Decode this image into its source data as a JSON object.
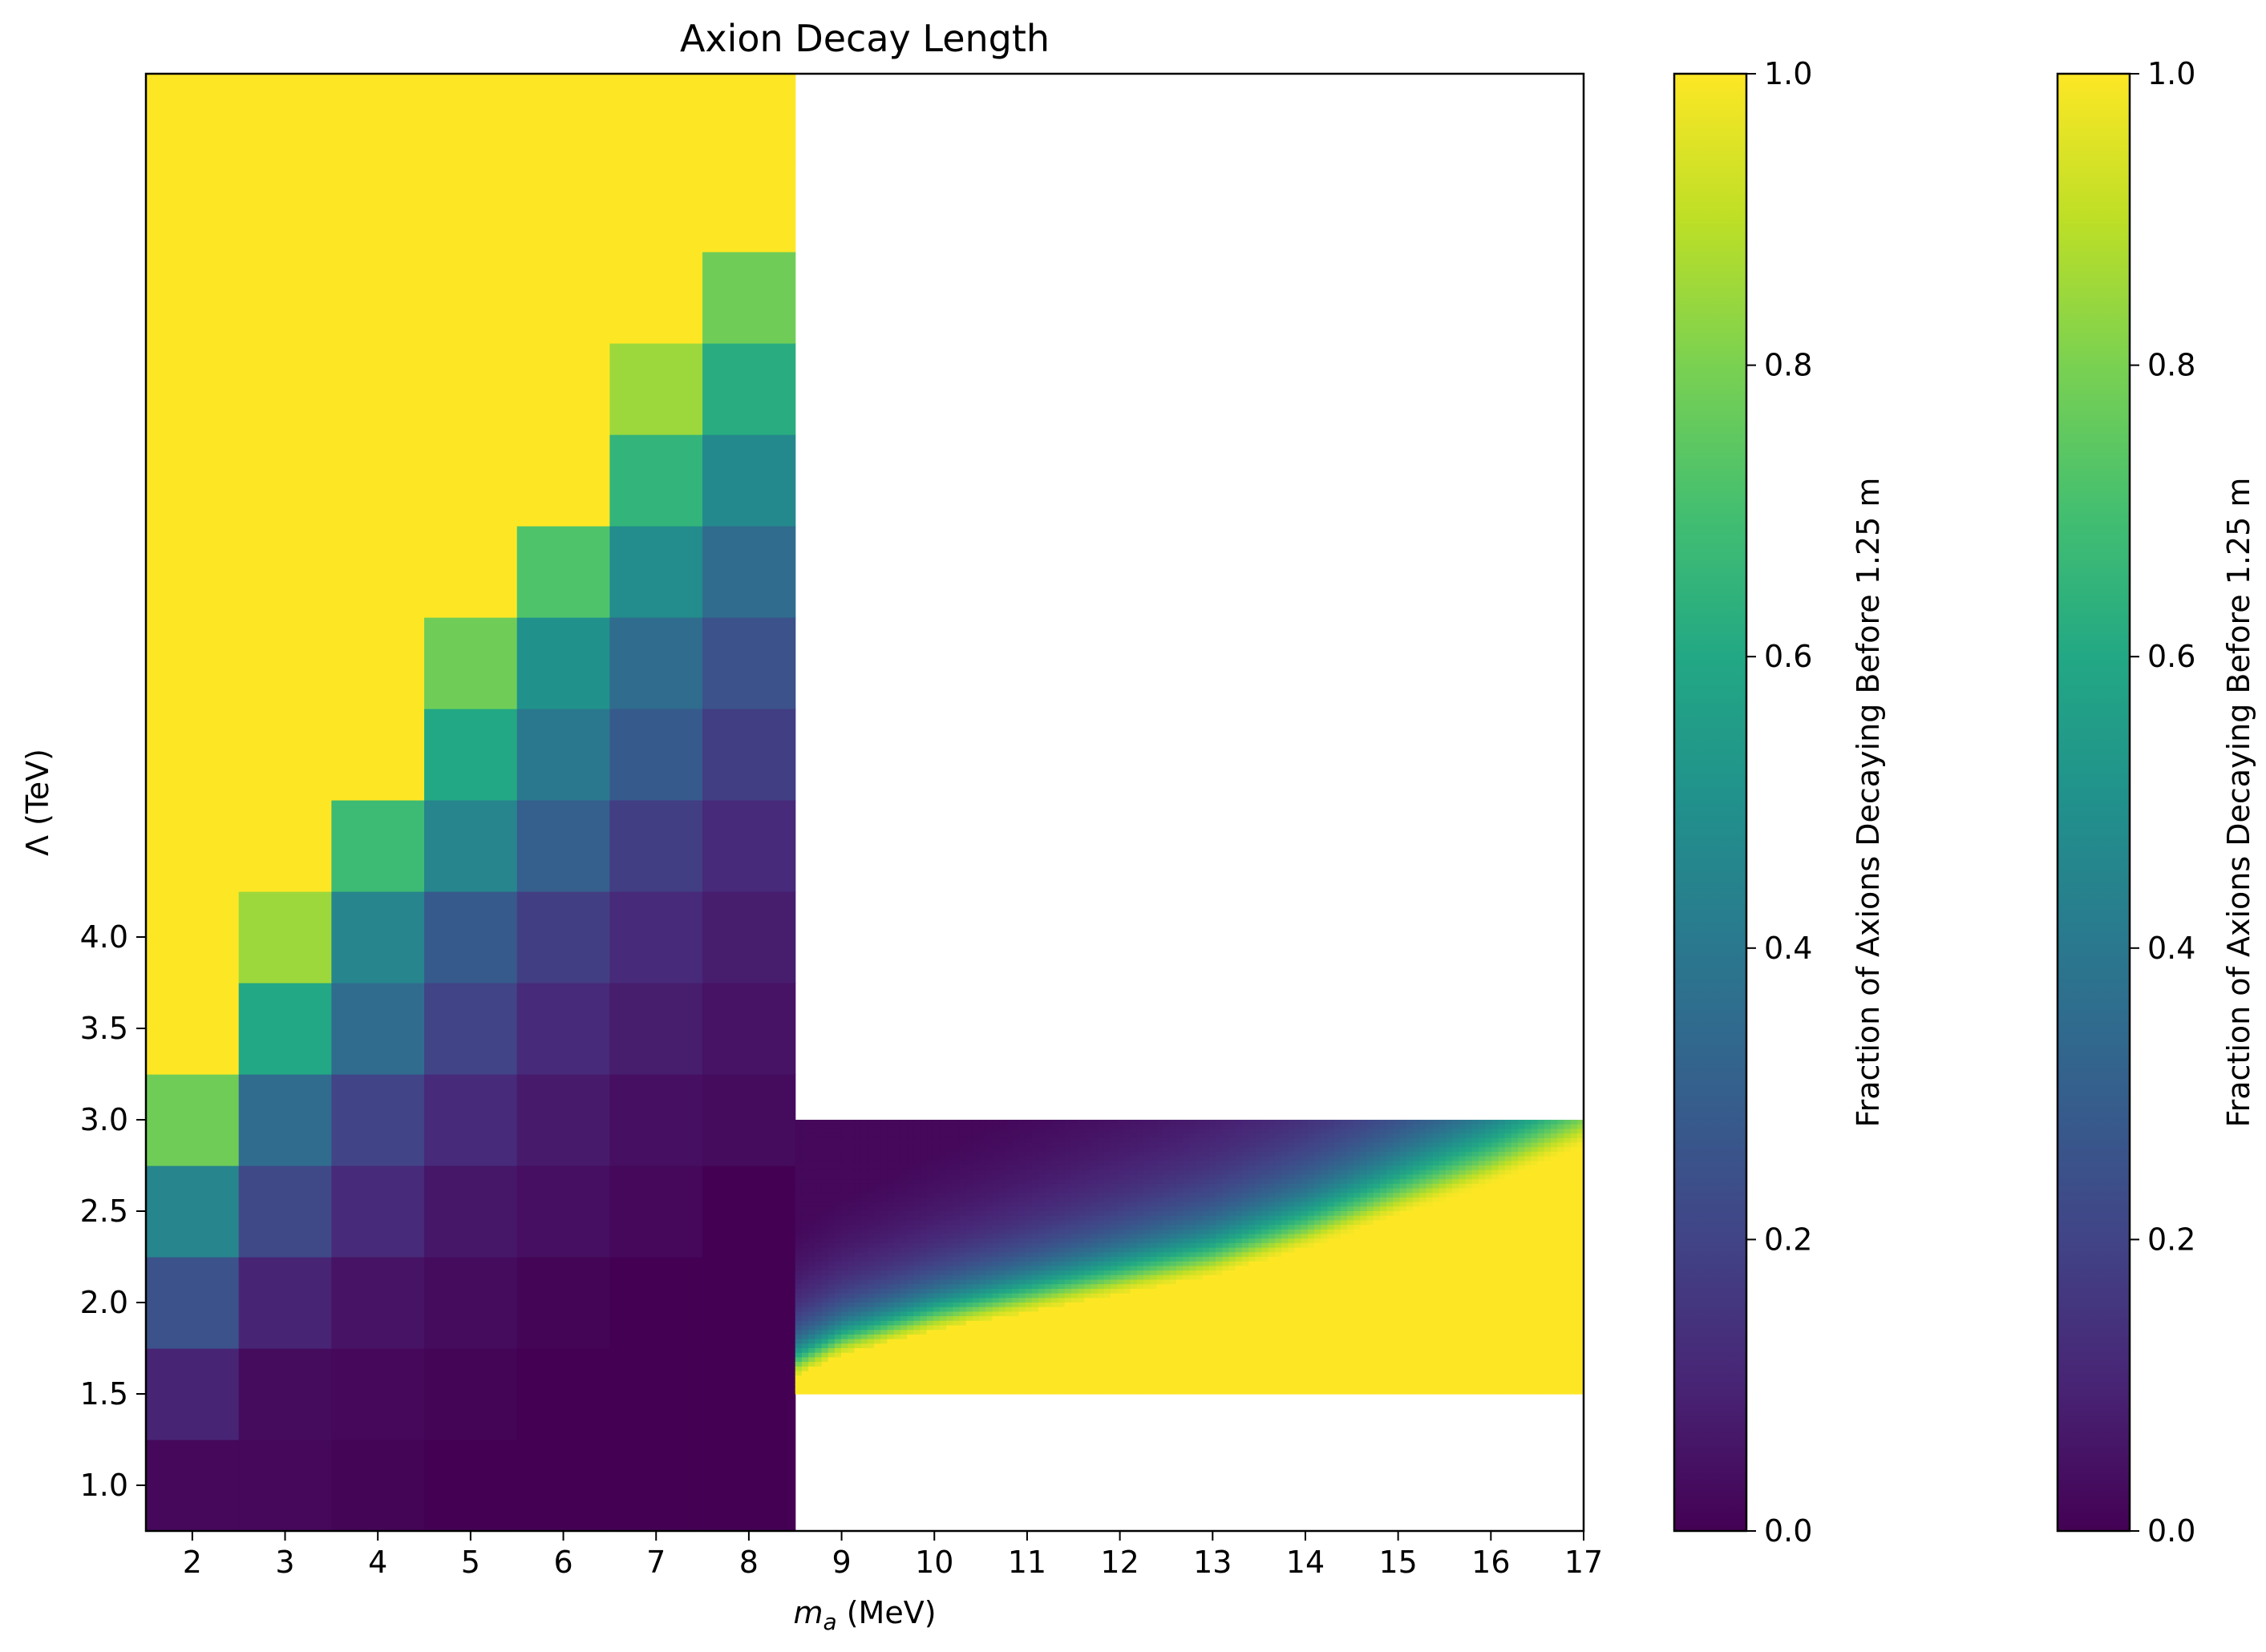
{
  "chart_data": {
    "type": "heatmap",
    "title": "Axion Decay Length",
    "xlabel": "m",
    "xlabel_sub": "a",
    "xlabel_unit": " (MeV)",
    "ylabel": "Λ (TeV)",
    "x_ticks": [
      "2",
      "3",
      "4",
      "5",
      "6",
      "7",
      "8",
      "9",
      "10",
      "11",
      "12",
      "13",
      "14",
      "15",
      "16",
      "17"
    ],
    "y_ticks": [
      "1.0",
      "1.5",
      "2.0",
      "2.5",
      "3.0",
      "3.5",
      "4.0"
    ],
    "colormap": "viridis",
    "colorbars": [
      {
        "label": "Fraction of Axions Decaying Before 1.25 m",
        "ticks": [
          "0.0",
          "0.2",
          "0.4",
          "0.6",
          "0.8",
          "1.0"
        ],
        "range": [
          0,
          1
        ]
      },
      {
        "label": "Fraction of Axions Decaying Before 1.25 m",
        "ticks": [
          "0.0",
          "0.2",
          "0.4",
          "0.6",
          "0.8",
          "1.0"
        ],
        "range": [
          0,
          1
        ]
      }
    ],
    "grid": false,
    "left_grid": {
      "x": [
        2,
        3,
        4,
        5,
        6,
        7,
        8
      ],
      "y_rows": [
        1.0,
        1.5,
        2.0,
        2.5,
        3.0,
        3.5,
        4.0,
        4.5,
        5.0,
        5.5,
        6.0,
        6.5,
        7.0,
        7.5,
        8.0,
        8.5
      ],
      "values": [
        [
          0.02,
          0.02,
          0.01,
          0.0,
          0.0,
          0.0,
          0.0
        ],
        [
          0.1,
          0.03,
          0.02,
          0.01,
          0.0,
          0.0,
          0.0
        ],
        [
          0.25,
          0.1,
          0.05,
          0.03,
          0.01,
          0.0,
          0.0
        ],
        [
          0.45,
          0.22,
          0.12,
          0.06,
          0.04,
          0.02,
          0.0
        ],
        [
          0.78,
          0.35,
          0.2,
          0.12,
          0.07,
          0.04,
          0.03
        ],
        [
          1.0,
          0.6,
          0.35,
          0.2,
          0.12,
          0.08,
          0.05
        ],
        [
          1.0,
          0.85,
          0.45,
          0.28,
          0.18,
          0.12,
          0.08
        ],
        [
          1.0,
          1.0,
          0.68,
          0.45,
          0.3,
          0.18,
          0.12
        ],
        [
          1.0,
          1.0,
          1.0,
          0.6,
          0.4,
          0.28,
          0.18
        ],
        [
          1.0,
          1.0,
          1.0,
          0.78,
          0.5,
          0.35,
          0.25
        ],
        [
          1.0,
          1.0,
          1.0,
          1.0,
          0.72,
          0.48,
          0.35
        ],
        [
          1.0,
          1.0,
          1.0,
          1.0,
          1.0,
          0.65,
          0.47
        ],
        [
          1.0,
          1.0,
          1.0,
          1.0,
          1.0,
          0.85,
          0.62
        ],
        [
          1.0,
          1.0,
          1.0,
          1.0,
          1.0,
          1.0,
          0.78
        ],
        [
          1.0,
          1.0,
          1.0,
          1.0,
          1.0,
          1.0,
          1.0
        ],
        [
          1.0,
          1.0,
          1.0,
          1.0,
          1.0,
          1.0,
          1.0
        ]
      ]
    },
    "right_region": {
      "x_range": [
        8.5,
        17
      ],
      "y_range": [
        1.5,
        3.0
      ],
      "transition_points": [
        [
          8.5,
          1.6
        ],
        [
          9,
          1.72
        ],
        [
          10,
          1.85
        ],
        [
          11,
          1.95
        ],
        [
          12,
          2.05
        ],
        [
          13,
          2.15
        ],
        [
          14,
          2.3
        ],
        [
          15,
          2.48
        ],
        [
          16,
          2.65
        ],
        [
          17,
          2.85
        ]
      ],
      "transition_width": 0.35
    }
  }
}
